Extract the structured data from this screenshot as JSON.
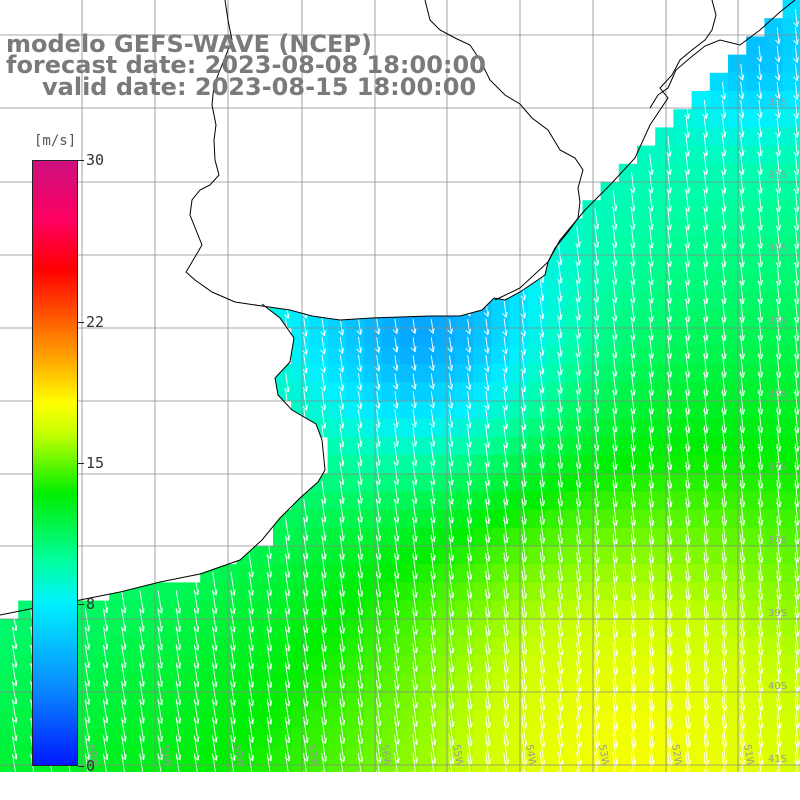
{
  "title": {
    "line1": "modelo GEFS-WAVE (NCEP)",
    "line2": "forecast date: 2023-08-08 18:00:00",
    "line3": "valid date: 2023-08-15 18:00:00"
  },
  "colorbar": {
    "unit": "[m/s]",
    "ticks": [
      {
        "label": "30",
        "value": 30
      },
      {
        "label": "22",
        "value": 22
      },
      {
        "label": "15",
        "value": 15
      },
      {
        "label": "8",
        "value": 8
      },
      {
        "label": "0",
        "value": 0
      }
    ],
    "min": 0,
    "max": 30
  },
  "map": {
    "lat_labels": [
      "32S",
      "33S",
      "34S",
      "35S",
      "36S",
      "37S",
      "38S",
      "39S",
      "40S",
      "41S"
    ],
    "lon_labels": [
      "60W",
      "59W",
      "58W",
      "57W",
      "56W",
      "55W",
      "54W",
      "53W",
      "52W",
      "51W"
    ],
    "field": "wind speed",
    "arrow_direction": "toward south-southeast",
    "colors": {
      "land": "#ffffff",
      "coast": "#000000",
      "grid": "#8a8a8a",
      "arrows": "#ffffff"
    }
  }
}
